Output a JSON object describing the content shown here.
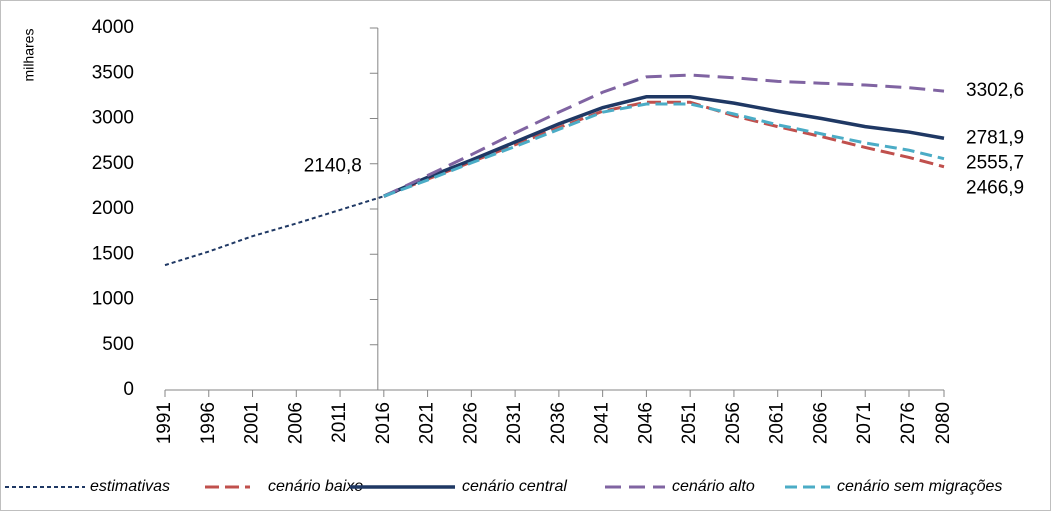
{
  "chart_data": {
    "type": "line",
    "y_label": "milhares",
    "x": [
      1991,
      1996,
      2001,
      2006,
      2011,
      2016,
      2021,
      2026,
      2031,
      2036,
      2041,
      2046,
      2051,
      2056,
      2061,
      2066,
      2071,
      2076,
      2080
    ],
    "xlim": [
      1991,
      2080
    ],
    "xticks": [
      1991,
      1996,
      2001,
      2006,
      2011,
      2016,
      2021,
      2026,
      2031,
      2036,
      2041,
      2046,
      2051,
      2056,
      2061,
      2066,
      2071,
      2076,
      2080
    ],
    "ylim": [
      0,
      4000
    ],
    "yticks": [
      0,
      500,
      1000,
      1500,
      2000,
      2500,
      3000,
      3500,
      4000
    ],
    "legend": "bottom",
    "series": [
      {
        "name": "estimativas",
        "color": "#1f3864",
        "dash": "4,3",
        "width": 2,
        "values": [
          1380,
          1530,
          1700,
          1840,
          1990,
          2140.8,
          null,
          null,
          null,
          null,
          null,
          null,
          null,
          null,
          null,
          null,
          null,
          null,
          null
        ],
        "value_labels": [
          null,
          null,
          null,
          null,
          null,
          "2140,8",
          null,
          null,
          null,
          null,
          null,
          null,
          null,
          null,
          null,
          null,
          null,
          null,
          null
        ]
      },
      {
        "name": "cenário baixo",
        "color": "#c0504d",
        "dash": "14,6",
        "width": 3,
        "values": [
          null,
          null,
          null,
          null,
          null,
          2140.8,
          2330,
          2520,
          2710,
          2900,
          3080,
          3180,
          3180,
          3030,
          2910,
          2800,
          2680,
          2570,
          2466.9
        ],
        "value_labels": [
          null,
          null,
          null,
          null,
          null,
          null,
          null,
          null,
          null,
          null,
          null,
          null,
          null,
          null,
          null,
          null,
          null,
          null,
          "2466,9"
        ]
      },
      {
        "name": "cenário central",
        "color": "#1f3864",
        "dash": "none",
        "width": 3.5,
        "values": [
          null,
          null,
          null,
          null,
          null,
          2140.8,
          2350,
          2540,
          2740,
          2940,
          3120,
          3240,
          3240,
          3170,
          3080,
          3000,
          2910,
          2850,
          2781.9
        ],
        "value_labels": [
          null,
          null,
          null,
          null,
          null,
          null,
          null,
          null,
          null,
          null,
          null,
          null,
          null,
          null,
          null,
          null,
          null,
          null,
          "2781,9"
        ]
      },
      {
        "name": "cenário alto",
        "color": "#8064a2",
        "dash": "16,8",
        "width": 3,
        "values": [
          null,
          null,
          null,
          null,
          null,
          2140.8,
          2370,
          2600,
          2840,
          3070,
          3290,
          3460,
          3480,
          3450,
          3410,
          3390,
          3370,
          3340,
          3302.6
        ],
        "value_labels": [
          null,
          null,
          null,
          null,
          null,
          null,
          null,
          null,
          null,
          null,
          null,
          null,
          null,
          null,
          null,
          null,
          null,
          null,
          "3302,6"
        ]
      },
      {
        "name": "cenário sem migrações",
        "color": "#4bacc6",
        "dash": "12,6",
        "width": 3,
        "values": [
          null,
          null,
          null,
          null,
          null,
          2140.8,
          2320,
          2510,
          2690,
          2880,
          3070,
          3160,
          3160,
          3050,
          2930,
          2830,
          2730,
          2650,
          2555.7
        ],
        "value_labels": [
          null,
          null,
          null,
          null,
          null,
          null,
          null,
          null,
          null,
          null,
          null,
          null,
          null,
          null,
          null,
          null,
          null,
          null,
          "2555,7"
        ]
      }
    ]
  }
}
